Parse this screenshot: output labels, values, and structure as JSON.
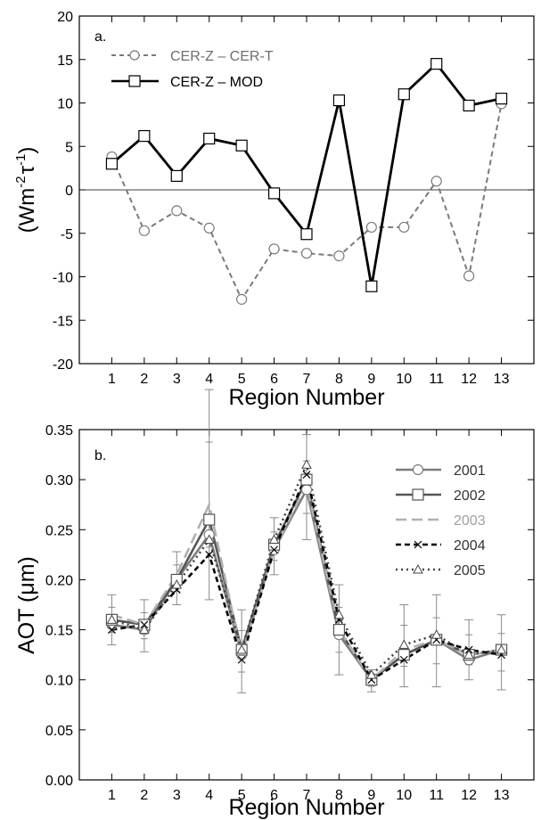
{
  "chart_data": [
    {
      "type": "line",
      "panel_label": "a.",
      "x": [
        1,
        2,
        3,
        4,
        5,
        6,
        7,
        8,
        9,
        10,
        11,
        12,
        13
      ],
      "xticks": [
        "1",
        "2",
        "3",
        "4",
        "5",
        "6",
        "7",
        "8",
        "9",
        "10",
        "11",
        "12",
        "13"
      ],
      "xlabel": "Region Number",
      "ylabel_main": "(Wm",
      "ylabel_sup1": "-2",
      "ylabel_tau": "τ",
      "ylabel_sup2": "-1",
      "ylabel_close": ")",
      "ylim": [
        -20,
        20
      ],
      "yticks": [
        "-20",
        "-15",
        "-10",
        "-5",
        "0",
        "5",
        "10",
        "15",
        "20"
      ],
      "series": [
        {
          "name": "CER-Z – CER-T",
          "color": "#7a7a7a",
          "dash": "dashed",
          "marker": "circle",
          "values": [
            3.8,
            -4.7,
            -2.4,
            -4.4,
            -12.6,
            -6.8,
            -7.3,
            -7.6,
            -4.3,
            -4.3,
            1.0,
            -9.9,
            9.9
          ]
        },
        {
          "name": "CER-Z – MOD",
          "color": "#000000",
          "dash": "solid",
          "marker": "square",
          "values": [
            3.0,
            6.2,
            1.6,
            5.9,
            5.1,
            -0.4,
            -5.1,
            10.3,
            -11.1,
            11.0,
            14.5,
            9.7,
            10.5
          ]
        }
      ],
      "zero_line": true
    },
    {
      "type": "line",
      "panel_label": "b.",
      "x": [
        1,
        2,
        3,
        4,
        5,
        6,
        7,
        8,
        9,
        10,
        11,
        12,
        13
      ],
      "xticks": [
        "1",
        "2",
        "3",
        "4",
        "5",
        "6",
        "7",
        "8",
        "9",
        "10",
        "11",
        "12",
        "13"
      ],
      "xlabel": "Region Number",
      "ylabel_main": "AOT (",
      "ylabel_mu": "μ",
      "ylabel_unit": "m)",
      "ylim": [
        0.0,
        0.35
      ],
      "yticks": [
        "0.00",
        "0.05",
        "0.10",
        "0.15",
        "0.20",
        "0.25",
        "0.30",
        "0.35"
      ],
      "series": [
        {
          "name": "2001",
          "color": "#7d7d7d",
          "dash": "solid",
          "marker": "circle",
          "values": [
            0.155,
            0.15,
            0.2,
            0.245,
            0.125,
            0.23,
            0.29,
            0.145,
            0.1,
            0.125,
            0.14,
            0.12,
            0.13
          ]
        },
        {
          "name": "2002",
          "color": "#555555",
          "dash": "solid",
          "marker": "square",
          "values": [
            0.16,
            0.155,
            0.2,
            0.26,
            0.13,
            0.235,
            0.3,
            0.15,
            0.1,
            0.125,
            0.14,
            0.125,
            0.13
          ]
        },
        {
          "name": "2003",
          "color": "#b0b0b0",
          "dash": "longdash",
          "marker": "none",
          "values": [
            0.165,
            0.155,
            0.205,
            0.275,
            0.125,
            0.23,
            0.295,
            0.15,
            0.1,
            0.13,
            0.14,
            0.125,
            0.13
          ]
        },
        {
          "name": "2004",
          "color": "#000000",
          "dash": "dashed",
          "marker": "x",
          "values": [
            0.15,
            0.155,
            0.19,
            0.225,
            0.12,
            0.23,
            0.305,
            0.16,
            0.1,
            0.12,
            0.14,
            0.13,
            0.125
          ]
        },
        {
          "name": "2005",
          "color": "#444444",
          "dash": "dotted",
          "marker": "triangle",
          "values": [
            0.16,
            0.15,
            0.195,
            0.24,
            0.13,
            0.24,
            0.315,
            0.165,
            0.105,
            0.135,
            0.145,
            0.125,
            0.13
          ]
        }
      ],
      "errors": [
        [
          0.148,
          0.164,
          0.135,
          0.185
        ],
        [
          0.15,
          0.16,
          0.128,
          0.18
        ],
        [
          0.2,
          0.2,
          0.175,
          0.228
        ],
        [
          0.25,
          0.265,
          0.18,
          0.39
        ],
        [
          0.125,
          0.128,
          0.087,
          0.17
        ],
        [
          0.232,
          0.232,
          0.205,
          0.262
        ],
        [
          0.3,
          0.305,
          0.24,
          0.345
        ],
        [
          0.15,
          0.155,
          0.105,
          0.195
        ],
        [
          0.1,
          0.1,
          0.088,
          0.11
        ],
        [
          0.128,
          0.128,
          0.093,
          0.175
        ],
        [
          0.14,
          0.14,
          0.093,
          0.185
        ],
        [
          0.125,
          0.125,
          0.1,
          0.16
        ],
        [
          0.13,
          0.13,
          0.09,
          0.165
        ]
      ]
    }
  ]
}
